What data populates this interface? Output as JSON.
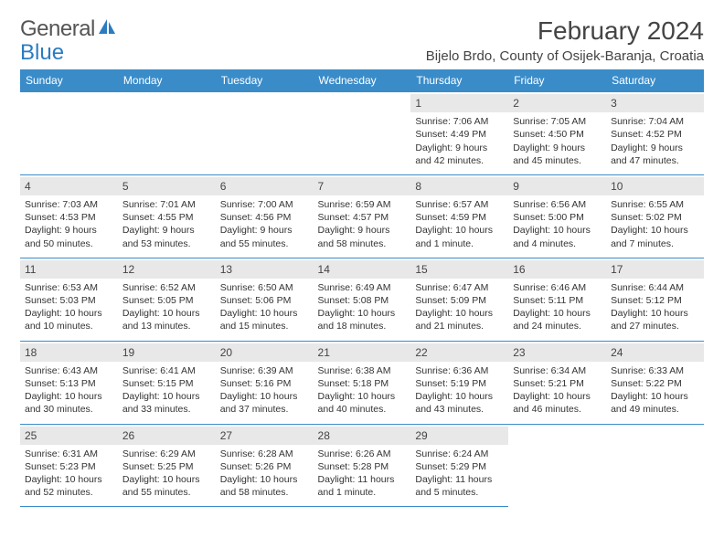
{
  "logo": {
    "text1": "General",
    "text2": "Blue"
  },
  "title": "February 2024",
  "location": "Bijelo Brdo, County of Osijek-Baranja, Croatia",
  "dayHeaders": [
    "Sunday",
    "Monday",
    "Tuesday",
    "Wednesday",
    "Thursday",
    "Friday",
    "Saturday"
  ],
  "colors": {
    "headerBg": "#3a8cc9",
    "headerText": "#ffffff",
    "dayNumBg": "#e8e8e8",
    "borderColor": "#3a8cc9"
  },
  "weeks": [
    [
      null,
      null,
      null,
      null,
      {
        "n": "1",
        "sr": "Sunrise: 7:06 AM",
        "ss": "Sunset: 4:49 PM",
        "d1": "Daylight: 9 hours",
        "d2": "and 42 minutes."
      },
      {
        "n": "2",
        "sr": "Sunrise: 7:05 AM",
        "ss": "Sunset: 4:50 PM",
        "d1": "Daylight: 9 hours",
        "d2": "and 45 minutes."
      },
      {
        "n": "3",
        "sr": "Sunrise: 7:04 AM",
        "ss": "Sunset: 4:52 PM",
        "d1": "Daylight: 9 hours",
        "d2": "and 47 minutes."
      }
    ],
    [
      {
        "n": "4",
        "sr": "Sunrise: 7:03 AM",
        "ss": "Sunset: 4:53 PM",
        "d1": "Daylight: 9 hours",
        "d2": "and 50 minutes."
      },
      {
        "n": "5",
        "sr": "Sunrise: 7:01 AM",
        "ss": "Sunset: 4:55 PM",
        "d1": "Daylight: 9 hours",
        "d2": "and 53 minutes."
      },
      {
        "n": "6",
        "sr": "Sunrise: 7:00 AM",
        "ss": "Sunset: 4:56 PM",
        "d1": "Daylight: 9 hours",
        "d2": "and 55 minutes."
      },
      {
        "n": "7",
        "sr": "Sunrise: 6:59 AM",
        "ss": "Sunset: 4:57 PM",
        "d1": "Daylight: 9 hours",
        "d2": "and 58 minutes."
      },
      {
        "n": "8",
        "sr": "Sunrise: 6:57 AM",
        "ss": "Sunset: 4:59 PM",
        "d1": "Daylight: 10 hours",
        "d2": "and 1 minute."
      },
      {
        "n": "9",
        "sr": "Sunrise: 6:56 AM",
        "ss": "Sunset: 5:00 PM",
        "d1": "Daylight: 10 hours",
        "d2": "and 4 minutes."
      },
      {
        "n": "10",
        "sr": "Sunrise: 6:55 AM",
        "ss": "Sunset: 5:02 PM",
        "d1": "Daylight: 10 hours",
        "d2": "and 7 minutes."
      }
    ],
    [
      {
        "n": "11",
        "sr": "Sunrise: 6:53 AM",
        "ss": "Sunset: 5:03 PM",
        "d1": "Daylight: 10 hours",
        "d2": "and 10 minutes."
      },
      {
        "n": "12",
        "sr": "Sunrise: 6:52 AM",
        "ss": "Sunset: 5:05 PM",
        "d1": "Daylight: 10 hours",
        "d2": "and 13 minutes."
      },
      {
        "n": "13",
        "sr": "Sunrise: 6:50 AM",
        "ss": "Sunset: 5:06 PM",
        "d1": "Daylight: 10 hours",
        "d2": "and 15 minutes."
      },
      {
        "n": "14",
        "sr": "Sunrise: 6:49 AM",
        "ss": "Sunset: 5:08 PM",
        "d1": "Daylight: 10 hours",
        "d2": "and 18 minutes."
      },
      {
        "n": "15",
        "sr": "Sunrise: 6:47 AM",
        "ss": "Sunset: 5:09 PM",
        "d1": "Daylight: 10 hours",
        "d2": "and 21 minutes."
      },
      {
        "n": "16",
        "sr": "Sunrise: 6:46 AM",
        "ss": "Sunset: 5:11 PM",
        "d1": "Daylight: 10 hours",
        "d2": "and 24 minutes."
      },
      {
        "n": "17",
        "sr": "Sunrise: 6:44 AM",
        "ss": "Sunset: 5:12 PM",
        "d1": "Daylight: 10 hours",
        "d2": "and 27 minutes."
      }
    ],
    [
      {
        "n": "18",
        "sr": "Sunrise: 6:43 AM",
        "ss": "Sunset: 5:13 PM",
        "d1": "Daylight: 10 hours",
        "d2": "and 30 minutes."
      },
      {
        "n": "19",
        "sr": "Sunrise: 6:41 AM",
        "ss": "Sunset: 5:15 PM",
        "d1": "Daylight: 10 hours",
        "d2": "and 33 minutes."
      },
      {
        "n": "20",
        "sr": "Sunrise: 6:39 AM",
        "ss": "Sunset: 5:16 PM",
        "d1": "Daylight: 10 hours",
        "d2": "and 37 minutes."
      },
      {
        "n": "21",
        "sr": "Sunrise: 6:38 AM",
        "ss": "Sunset: 5:18 PM",
        "d1": "Daylight: 10 hours",
        "d2": "and 40 minutes."
      },
      {
        "n": "22",
        "sr": "Sunrise: 6:36 AM",
        "ss": "Sunset: 5:19 PM",
        "d1": "Daylight: 10 hours",
        "d2": "and 43 minutes."
      },
      {
        "n": "23",
        "sr": "Sunrise: 6:34 AM",
        "ss": "Sunset: 5:21 PM",
        "d1": "Daylight: 10 hours",
        "d2": "and 46 minutes."
      },
      {
        "n": "24",
        "sr": "Sunrise: 6:33 AM",
        "ss": "Sunset: 5:22 PM",
        "d1": "Daylight: 10 hours",
        "d2": "and 49 minutes."
      }
    ],
    [
      {
        "n": "25",
        "sr": "Sunrise: 6:31 AM",
        "ss": "Sunset: 5:23 PM",
        "d1": "Daylight: 10 hours",
        "d2": "and 52 minutes."
      },
      {
        "n": "26",
        "sr": "Sunrise: 6:29 AM",
        "ss": "Sunset: 5:25 PM",
        "d1": "Daylight: 10 hours",
        "d2": "and 55 minutes."
      },
      {
        "n": "27",
        "sr": "Sunrise: 6:28 AM",
        "ss": "Sunset: 5:26 PM",
        "d1": "Daylight: 10 hours",
        "d2": "and 58 minutes."
      },
      {
        "n": "28",
        "sr": "Sunrise: 6:26 AM",
        "ss": "Sunset: 5:28 PM",
        "d1": "Daylight: 11 hours",
        "d2": "and 1 minute."
      },
      {
        "n": "29",
        "sr": "Sunrise: 6:24 AM",
        "ss": "Sunset: 5:29 PM",
        "d1": "Daylight: 11 hours",
        "d2": "and 5 minutes."
      },
      null,
      null
    ]
  ]
}
